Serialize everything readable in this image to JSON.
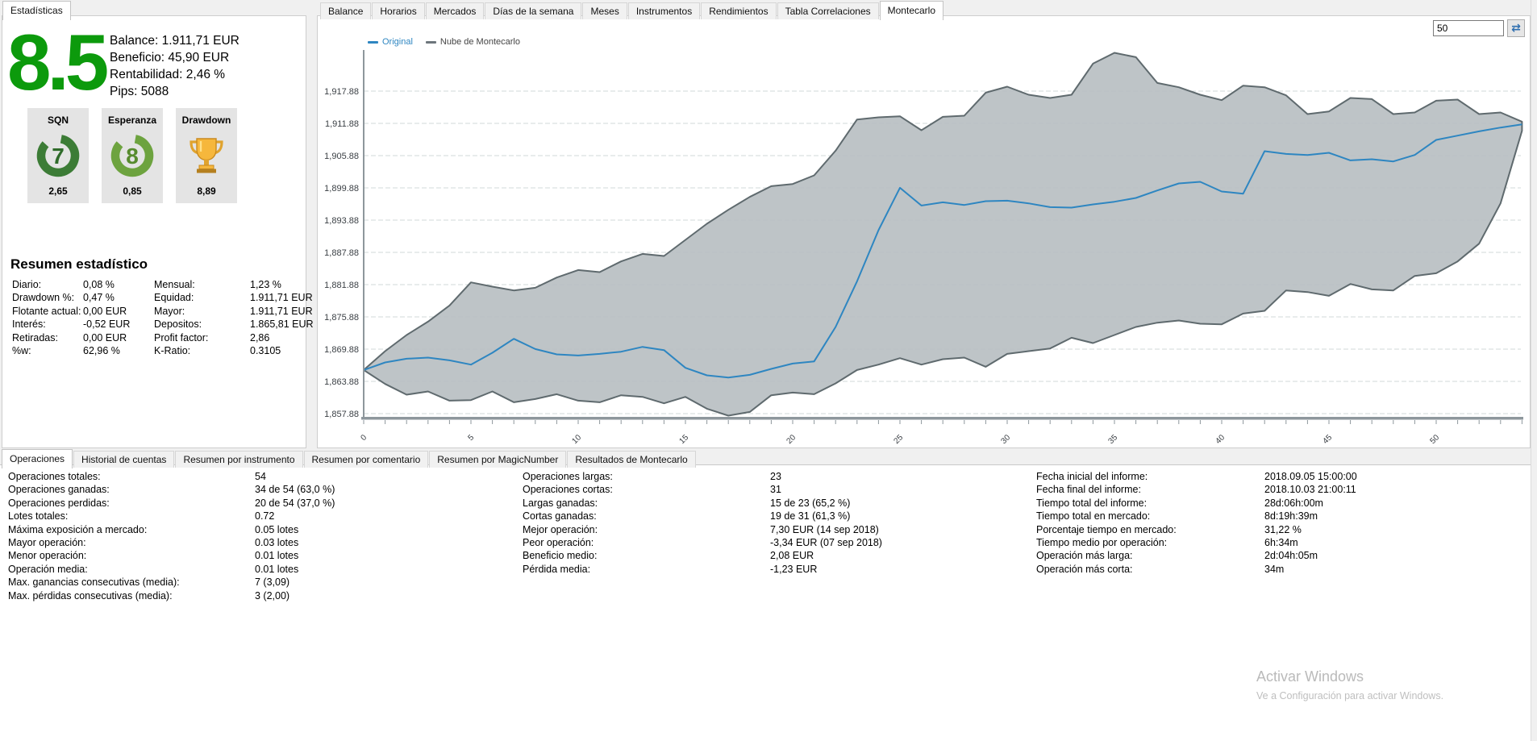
{
  "left_panel": {
    "tab_label": "Estadísticas",
    "score": "8.5",
    "score_color": "#0c9a0c",
    "summary_lines": [
      "Balance: 1.911,71 EUR",
      "Beneficio: 45,90 EUR",
      "Rentabilidad: 2,46 %",
      "Pips: 5088"
    ],
    "gauges": [
      {
        "title": "SQN",
        "icon": "ring-gauge",
        "number": "7",
        "value": "2,65",
        "ring_color": "#3c7c36",
        "number_color": "#2f6b2a"
      },
      {
        "title": "Esperanza",
        "icon": "ring-gauge",
        "number": "8",
        "value": "0,85",
        "ring_color": "#6da33f",
        "number_color": "#578b2e"
      },
      {
        "title": "Drawdown",
        "icon": "trophy",
        "number": "",
        "value": "8,89",
        "ring_color": "#e8a33d",
        "number_color": "#b5801f"
      }
    ],
    "resumen": {
      "heading": "Resumen estadístico",
      "col1": [
        [
          "Diario:",
          "0,08 %"
        ],
        [
          "Drawdown %:",
          "0,47 %"
        ],
        [
          "Flotante actual:",
          "0,00 EUR"
        ],
        [
          "Interés:",
          "-0,52 EUR"
        ],
        [
          "Retiradas:",
          "0,00 EUR"
        ],
        [
          "%w:",
          "62,96 %"
        ]
      ],
      "col2": [
        [
          "Mensual:",
          "1,23 %"
        ],
        [
          "Equidad:",
          "1.911,71 EUR"
        ],
        [
          "Mayor:",
          "1.911,71 EUR"
        ],
        [
          "Depositos:",
          "1.865,81 EUR"
        ],
        [
          "Profit factor:",
          "2,86"
        ],
        [
          "K-Ratio:",
          "0.3105"
        ]
      ]
    }
  },
  "chart_panel": {
    "tabs": [
      "Balance",
      "Horarios",
      "Mercados",
      "Días de la semana",
      "Meses",
      "Instrumentos",
      "Rendimientos",
      "Tabla Correlaciones",
      "Montecarlo"
    ],
    "active_tab": "Montecarlo",
    "simulations_value": "50",
    "icons": {
      "refresh": "⇄"
    }
  },
  "chart_data": {
    "type": "area",
    "title": "",
    "xlabel": "",
    "ylabel": "",
    "x_start": 0,
    "x_step": 1,
    "x_ticks": [
      0,
      5,
      10,
      15,
      20,
      25,
      30,
      35,
      40,
      45,
      50
    ],
    "ylim": [
      1857.88,
      1917.88
    ],
    "y_ticks": [
      {
        "value": 1857.88,
        "label": "1,857.88"
      },
      {
        "value": 1863.88,
        "label": "1,863.88"
      },
      {
        "value": 1869.88,
        "label": "1,869.88"
      },
      {
        "value": 1875.88,
        "label": "1,875.88"
      },
      {
        "value": 1881.88,
        "label": "1,881.88"
      },
      {
        "value": 1887.88,
        "label": "1,887.88"
      },
      {
        "value": 1893.88,
        "label": "1,893.88"
      },
      {
        "value": 1899.88,
        "label": "1,899.88"
      },
      {
        "value": 1905.88,
        "label": "1,905.88"
      },
      {
        "value": 1911.88,
        "label": "1,911.88"
      },
      {
        "value": 1917.88,
        "label": "1,917.88"
      }
    ],
    "legend": [
      {
        "label": "Original",
        "color": "#2e86c1",
        "text_color": "#2e86c1"
      },
      {
        "label": "Nube de Montecarlo",
        "color": "#6d767c",
        "text_color": "#444444"
      }
    ],
    "series": [
      {
        "name": "Original",
        "role": "line",
        "values": [
          1866.0,
          1867.4,
          1868.1,
          1868.3,
          1867.8,
          1867.0,
          1869.2,
          1871.8,
          1869.9,
          1868.9,
          1868.7,
          1869.0,
          1869.4,
          1870.3,
          1869.7,
          1866.4,
          1865.0,
          1864.6,
          1865.1,
          1866.2,
          1867.2,
          1867.6,
          1874.0,
          1882.5,
          1892.0,
          1899.9,
          1896.6,
          1897.2,
          1896.7,
          1897.4,
          1897.5,
          1897.0,
          1896.3,
          1896.2,
          1896.8,
          1897.3,
          1898.0,
          1899.4,
          1900.7,
          1901.0,
          1899.2,
          1898.8,
          1906.7,
          1906.2,
          1906.0,
          1906.4,
          1905.0,
          1905.2,
          1904.8,
          1906.0,
          1908.8,
          1909.6,
          1910.4,
          1911.1,
          1911.7
        ]
      },
      {
        "name": "Nube de Montecarlo (máximo)",
        "role": "band-upper",
        "values": [
          1866.0,
          1869.5,
          1872.5,
          1875.0,
          1878.0,
          1882.3,
          1881.5,
          1880.8,
          1881.3,
          1883.2,
          1884.6,
          1884.2,
          1886.2,
          1887.6,
          1887.2,
          1890.2,
          1893.2,
          1895.8,
          1898.2,
          1900.2,
          1900.6,
          1902.2,
          1906.8,
          1912.6,
          1913.0,
          1913.2,
          1910.6,
          1913.1,
          1913.3,
          1917.6,
          1918.7,
          1917.2,
          1916.6,
          1917.2,
          1923.0,
          1925.0,
          1924.2,
          1919.4,
          1918.6,
          1917.2,
          1916.2,
          1918.9,
          1918.6,
          1917.1,
          1913.6,
          1914.1,
          1916.6,
          1916.4,
          1913.6,
          1913.9,
          1916.1,
          1916.3,
          1913.6,
          1913.9,
          1912.2
        ]
      },
      {
        "name": "Nube de Montecarlo (mínimo)",
        "role": "band-lower",
        "values": [
          1866.0,
          1863.4,
          1861.4,
          1862.0,
          1860.3,
          1860.4,
          1862.0,
          1860.0,
          1860.6,
          1861.5,
          1860.3,
          1860.0,
          1861.3,
          1861.0,
          1859.8,
          1861.0,
          1858.8,
          1857.5,
          1858.2,
          1861.3,
          1861.8,
          1861.5,
          1863.5,
          1866.0,
          1867.0,
          1868.2,
          1867.0,
          1868.0,
          1868.3,
          1866.6,
          1869.0,
          1869.5,
          1870.0,
          1872.0,
          1871.0,
          1872.5,
          1874.0,
          1874.8,
          1875.2,
          1874.6,
          1874.5,
          1876.5,
          1877.0,
          1880.8,
          1880.5,
          1879.8,
          1882.0,
          1881.0,
          1880.8,
          1883.5,
          1884.0,
          1886.2,
          1889.5,
          1897.0,
          1910.5
        ]
      }
    ],
    "colors": {
      "band_fill": "#b9bfc2",
      "band_stroke": "#5f6a6e",
      "line": "#2e86c1",
      "grid": "#d2d8da",
      "axis": "#8e979c",
      "tick_text": "#3a3f44"
    },
    "grid": "horizontal-only",
    "legend_position": "top-left"
  },
  "bottom_panel": {
    "tabs": [
      "Operaciones",
      "Historial de cuentas",
      "Resumen por instrumento",
      "Resumen por comentario",
      "Resumen por MagicNumber",
      "Resultados de Montecarlo"
    ],
    "active_tab": "Operaciones",
    "columns": [
      {
        "rows": [
          [
            "Operaciones totales:",
            "54"
          ],
          [
            "Operaciones ganadas:",
            "34 de 54 (63,0 %)"
          ],
          [
            "Operaciones perdidas:",
            "20 de 54 (37,0 %)"
          ],
          [
            "Lotes totales:",
            "0.72"
          ],
          [
            "Máxima exposición a mercado:",
            "0.05 lotes"
          ],
          [
            "Mayor operación:",
            "0.03 lotes"
          ],
          [
            "Menor operación:",
            "0.01 lotes"
          ],
          [
            "Operación media:",
            "0.01 lotes"
          ],
          [
            "Max. ganancias consecutivas (media):",
            "7 (3,09)"
          ],
          [
            "Max. pérdidas consecutivas (media):",
            "3 (2,00)"
          ]
        ]
      },
      {
        "rows": [
          [
            "Operaciones largas:",
            "23"
          ],
          [
            "Operaciones cortas:",
            "31"
          ],
          [
            "Largas ganadas:",
            "15 de 23 (65,2 %)"
          ],
          [
            "Cortas ganadas:",
            "19 de 31 (61,3 %)"
          ],
          [
            "Mejor operación:",
            "7,30 EUR (14 sep 2018)"
          ],
          [
            "Peor operación:",
            "-3,34 EUR (07 sep 2018)"
          ],
          [
            "Beneficio medio:",
            "2,08 EUR"
          ],
          [
            "Pérdida media:",
            "-1,23 EUR"
          ]
        ]
      },
      {
        "rows": [
          [
            "Fecha inicial del informe:",
            "2018.09.05 15:00:00"
          ],
          [
            "Fecha final del informe:",
            "2018.10.03 21:00:11"
          ],
          [
            "Tiempo total del informe:",
            "28d:06h:00m"
          ],
          [
            "Tiempo total en mercado:",
            "8d:19h:39m"
          ],
          [
            "Porcentaje tiempo en mercado:",
            "31,22 %"
          ],
          [
            "Tiempo medio por operación:",
            "6h:34m"
          ],
          [
            "Operación más larga:",
            "2d:04h:05m"
          ],
          [
            "Operación más corta:",
            "34m"
          ]
        ]
      }
    ]
  },
  "watermark": {
    "title": "Activar Windows",
    "subtitle": "Ve a Configuración para activar Windows."
  }
}
